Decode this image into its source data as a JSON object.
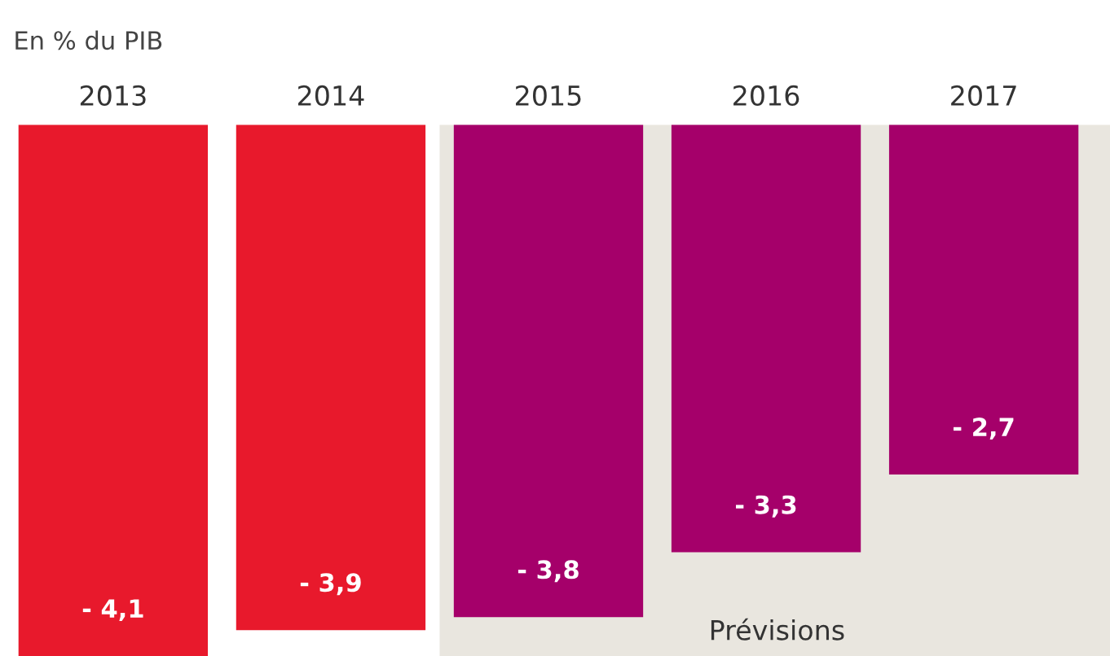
{
  "chart_data": {
    "type": "bar",
    "subtitle": "En % du PIB",
    "categories": [
      "2013",
      "2014",
      "2015",
      "2016",
      "2017"
    ],
    "values": [
      -4.1,
      -3.9,
      -3.8,
      -3.3,
      -2.7
    ],
    "colors": [
      "#e8192c",
      "#e8192c",
      "#a5006a",
      "#a5006a",
      "#a5006a"
    ],
    "value_labels": [
      "- 4,1",
      "- 3,9",
      "- 3,8",
      "- 3,3",
      "- 2,7"
    ],
    "tick_labels": "x",
    "grid": false,
    "bands": [
      {
        "axis": "x",
        "from": "2015",
        "to": "2017",
        "label": "Prévisions",
        "color": "#e9e6df"
      }
    ]
  }
}
